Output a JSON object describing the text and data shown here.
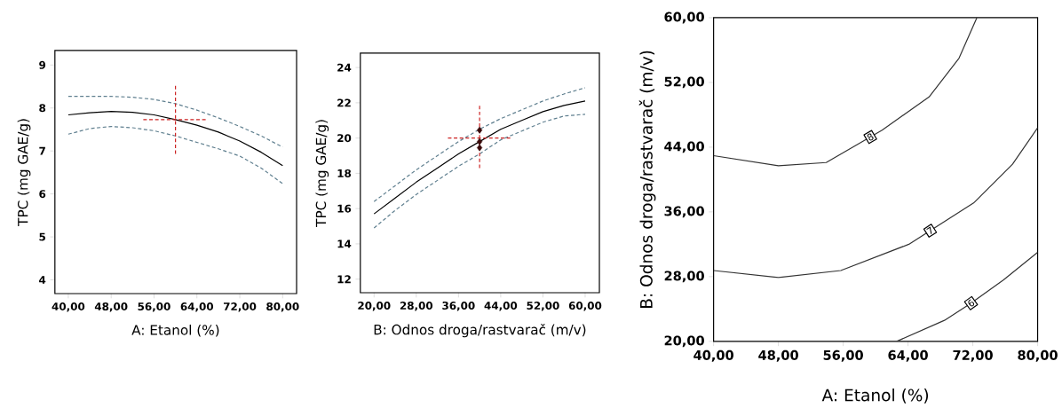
{
  "chart_data": [
    {
      "type": "line",
      "xlabel": "A: Etanol (%)",
      "ylabel": "TPC (mg GAE/g)",
      "xlim": [
        37.5,
        82.6
      ],
      "ylim": [
        3.68,
        9.34
      ],
      "xticks": [
        {
          "value": 40,
          "label": "40,00"
        },
        {
          "value": 48,
          "label": "48,00"
        },
        {
          "value": 56,
          "label": "56,00"
        },
        {
          "value": 64,
          "label": "64,00"
        },
        {
          "value": 72,
          "label": "72,00"
        },
        {
          "value": 80,
          "label": "80,00"
        }
      ],
      "yticks": [
        4,
        5,
        6,
        7,
        8,
        9
      ],
      "series": [
        {
          "color": "#5f7f8f",
          "line_style": "dashed",
          "x": [
            40,
            44,
            48,
            52,
            56,
            60,
            64,
            68,
            72,
            76,
            80
          ],
          "values": [
            8.27,
            8.27,
            8.27,
            8.25,
            8.2,
            8.1,
            7.95,
            7.77,
            7.57,
            7.35,
            7.09
          ]
        },
        {
          "color": "#5f7f8f",
          "line_style": "dashed",
          "x": [
            40,
            44,
            48,
            52,
            56,
            60,
            64,
            68,
            72,
            76,
            80
          ],
          "values": [
            7.39,
            7.52,
            7.57,
            7.54,
            7.47,
            7.35,
            7.2,
            7.05,
            6.88,
            6.6,
            6.24
          ]
        },
        {
          "color": "#000000",
          "line_style": "solid",
          "x": [
            40,
            44,
            48,
            52,
            56,
            60,
            64,
            68,
            72,
            76,
            80
          ],
          "values": [
            7.84,
            7.89,
            7.92,
            7.9,
            7.84,
            7.73,
            7.6,
            7.44,
            7.23,
            6.97,
            6.66
          ]
        },
        {
          "color": "#cc2222",
          "line_style": "dashed",
          "x": [
            60,
            60
          ],
          "values": [
            6.93,
            8.55
          ]
        },
        {
          "color": "#cc2222",
          "line_style": "dashed",
          "x": [
            54,
            66
          ],
          "values": [
            7.73,
            7.73
          ]
        }
      ]
    },
    {
      "type": "line",
      "xlabel": "B: Odnos droga/rastvarač (m/v)",
      "ylabel": "TPC (mg GAE/g)",
      "xlim": [
        17.4,
        62.7
      ],
      "ylim": [
        11.23,
        24.82
      ],
      "xticks": [
        {
          "value": 20,
          "label": "20,00"
        },
        {
          "value": 28,
          "label": "28,00"
        },
        {
          "value": 36,
          "label": "36,00"
        },
        {
          "value": 44,
          "label": "44,00"
        },
        {
          "value": 52,
          "label": "52,00"
        },
        {
          "value": 60,
          "label": "60,00"
        }
      ],
      "yticks": [
        12,
        14,
        16,
        18,
        20,
        22,
        24
      ],
      "series": [
        {
          "color": "#5f7f8f",
          "line_style": "dashed",
          "x": [
            20,
            24,
            28,
            32,
            36,
            40,
            44,
            48,
            52,
            56,
            60
          ],
          "values": [
            16.4,
            17.3,
            18.2,
            19.0,
            19.8,
            20.5,
            21.1,
            21.6,
            22.1,
            22.5,
            22.85
          ]
        },
        {
          "color": "#5f7f8f",
          "line_style": "dashed",
          "x": [
            20,
            24,
            28,
            32,
            36,
            40,
            44,
            48,
            52,
            56,
            60
          ],
          "values": [
            14.9,
            15.9,
            16.8,
            17.6,
            18.4,
            19.1,
            19.9,
            20.4,
            20.9,
            21.25,
            21.35
          ]
        },
        {
          "color": "#000000",
          "line_style": "solid",
          "x": [
            20,
            24,
            28,
            32,
            36,
            40,
            44,
            48,
            52,
            56,
            60
          ],
          "values": [
            15.7,
            16.6,
            17.5,
            18.3,
            19.1,
            19.8,
            20.5,
            21.0,
            21.5,
            21.85,
            22.1
          ]
        },
        {
          "color": "#cc2222",
          "line_style": "dashed",
          "x": [
            40,
            40
          ],
          "values": [
            18.3,
            21.95
          ]
        },
        {
          "color": "#cc2222",
          "line_style": "dashed",
          "x": [
            34,
            46
          ],
          "values": [
            20,
            20
          ]
        },
        {
          "type": "scatter",
          "marker": "diamond",
          "color": "#3a0a0a",
          "x": [
            40,
            40,
            40
          ],
          "values": [
            20.45,
            19.8,
            19.45
          ]
        }
      ]
    },
    {
      "type": "line",
      "xlabel": "A: Etanol (%)",
      "ylabel": "B: Odnos droga/rastvarač (m/v)",
      "xlim": [
        40,
        80
      ],
      "ylim": [
        20,
        60
      ],
      "xticks": [
        {
          "value": 40,
          "label": "40,00"
        },
        {
          "value": 48,
          "label": "48,00"
        },
        {
          "value": 56,
          "label": "56,00"
        },
        {
          "value": 64,
          "label": "64,00"
        },
        {
          "value": 72,
          "label": "72,00"
        },
        {
          "value": 80,
          "label": "80,00"
        }
      ],
      "yticks": [
        {
          "value": 20,
          "label": "20,00"
        },
        {
          "value": 28,
          "label": "28,00"
        },
        {
          "value": 36,
          "label": "36,00"
        },
        {
          "value": 44,
          "label": "44,00"
        },
        {
          "value": 52,
          "label": "52,00"
        },
        {
          "value": 60,
          "label": "60,00"
        }
      ],
      "series": [
        {
          "name": "8",
          "color": "#333333",
          "line_style": "solid",
          "x": [
            40,
            48,
            53.9,
            60.8,
            66.6,
            70.3,
            72.5
          ],
          "values": [
            42.95,
            41.7,
            42.1,
            46.1,
            50.2,
            55.0,
            60
          ]
        },
        {
          "name": "7",
          "color": "#333333",
          "line_style": "solid",
          "x": [
            40,
            48,
            55.7,
            64.1,
            72.1,
            76.9,
            80
          ],
          "values": [
            28.75,
            27.9,
            28.75,
            32.0,
            37.1,
            41.9,
            46.4
          ]
        },
        {
          "name": "6",
          "color": "#333333",
          "line_style": "solid",
          "x": [
            62.6,
            68.5,
            71.75,
            75.8,
            80
          ],
          "values": [
            20,
            22.6,
            24.7,
            27.6,
            31.0
          ]
        }
      ]
    }
  ]
}
